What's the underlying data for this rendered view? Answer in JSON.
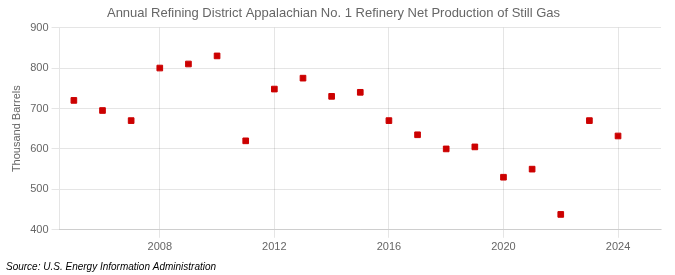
{
  "chart_data": {
    "type": "scatter",
    "title": "Annual Refining District Appalachian No. 1 Refinery Net Production of Still Gas",
    "y_label": "Thousand Barrels",
    "annotations": [
      "Source: U.S. Energy Information Administration"
    ],
    "x": [
      2005,
      2006,
      2007,
      2008,
      2009,
      2010,
      2011,
      2012,
      2013,
      2014,
      2015,
      2016,
      2017,
      2018,
      2019,
      2020,
      2021,
      2022,
      2023,
      2024
    ],
    "values": [
      720,
      695,
      670,
      800,
      810,
      830,
      620,
      748,
      775,
      730,
      740,
      670,
      635,
      600,
      605,
      530,
      550,
      438,
      670,
      632
    ],
    "color": "#cc0000",
    "marker": "square",
    "xlim": [
      2004.5,
      2025.5
    ],
    "xticks": [
      2008,
      2012,
      2016,
      2020,
      2024
    ],
    "ylim": [
      400,
      900
    ],
    "yticks": [
      400,
      500,
      600,
      700,
      800,
      900
    ],
    "grid": true
  }
}
